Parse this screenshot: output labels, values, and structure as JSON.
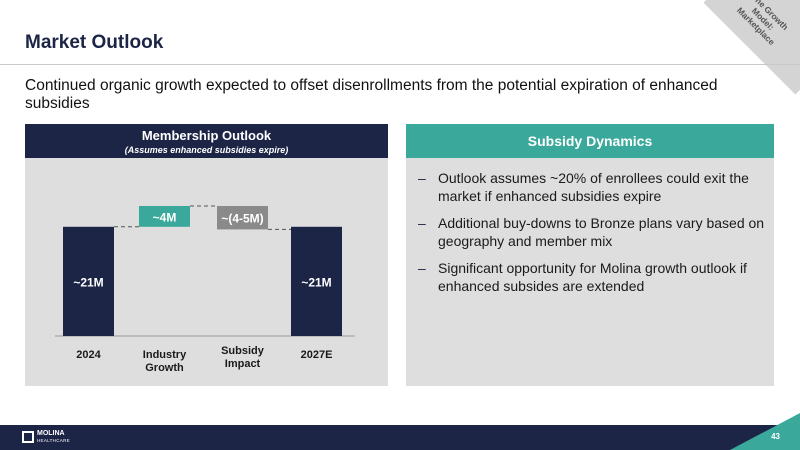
{
  "slide": {
    "title": "Market Outlook",
    "subtitle": "Continued organic growth expected to offset disenrollments from the potential expiration of enhanced subsidies",
    "corner_tag": "The Growth Model: Marketplace",
    "page_number": "43"
  },
  "logo": {
    "name": "MOLINA",
    "sub": "HEALTHCARE"
  },
  "left_panel": {
    "title": "Membership Outlook",
    "subtitle": "(Assumes enhanced subsidies expire)"
  },
  "right_panel": {
    "title": "Subsidy Dynamics",
    "bullets": [
      "Outlook assumes ~20% of enrollees could exit the market if enhanced subsidies expire",
      "Additional buy-downs to Bronze plans vary based on geography and member mix",
      "Significant opportunity for Molina growth outlook if enhanced subsides are extended"
    ]
  },
  "chart_data": {
    "type": "waterfall",
    "title": "Membership Outlook",
    "subtitle": "(Assumes enhanced subsidies expire)",
    "unit": "M members",
    "categories": [
      "2024",
      "Industry Growth",
      "Subsidy Impact",
      "2027E"
    ],
    "category_lines": [
      [
        "2024"
      ],
      [
        "Industry",
        "Growth"
      ],
      [
        "Subsidy",
        "Impact"
      ],
      [
        "2027E"
      ]
    ],
    "values": [
      21,
      4,
      -4.5,
      21
    ],
    "kinds": [
      "total",
      "increase",
      "decrease",
      "total"
    ],
    "labels": [
      "~21M",
      "~4M",
      "~(4-5M)",
      "~21M"
    ],
    "colors": [
      "#1d2547",
      "#3aa99c",
      "#8a8a8a",
      "#1d2547"
    ],
    "ylim": [
      0,
      30
    ]
  }
}
